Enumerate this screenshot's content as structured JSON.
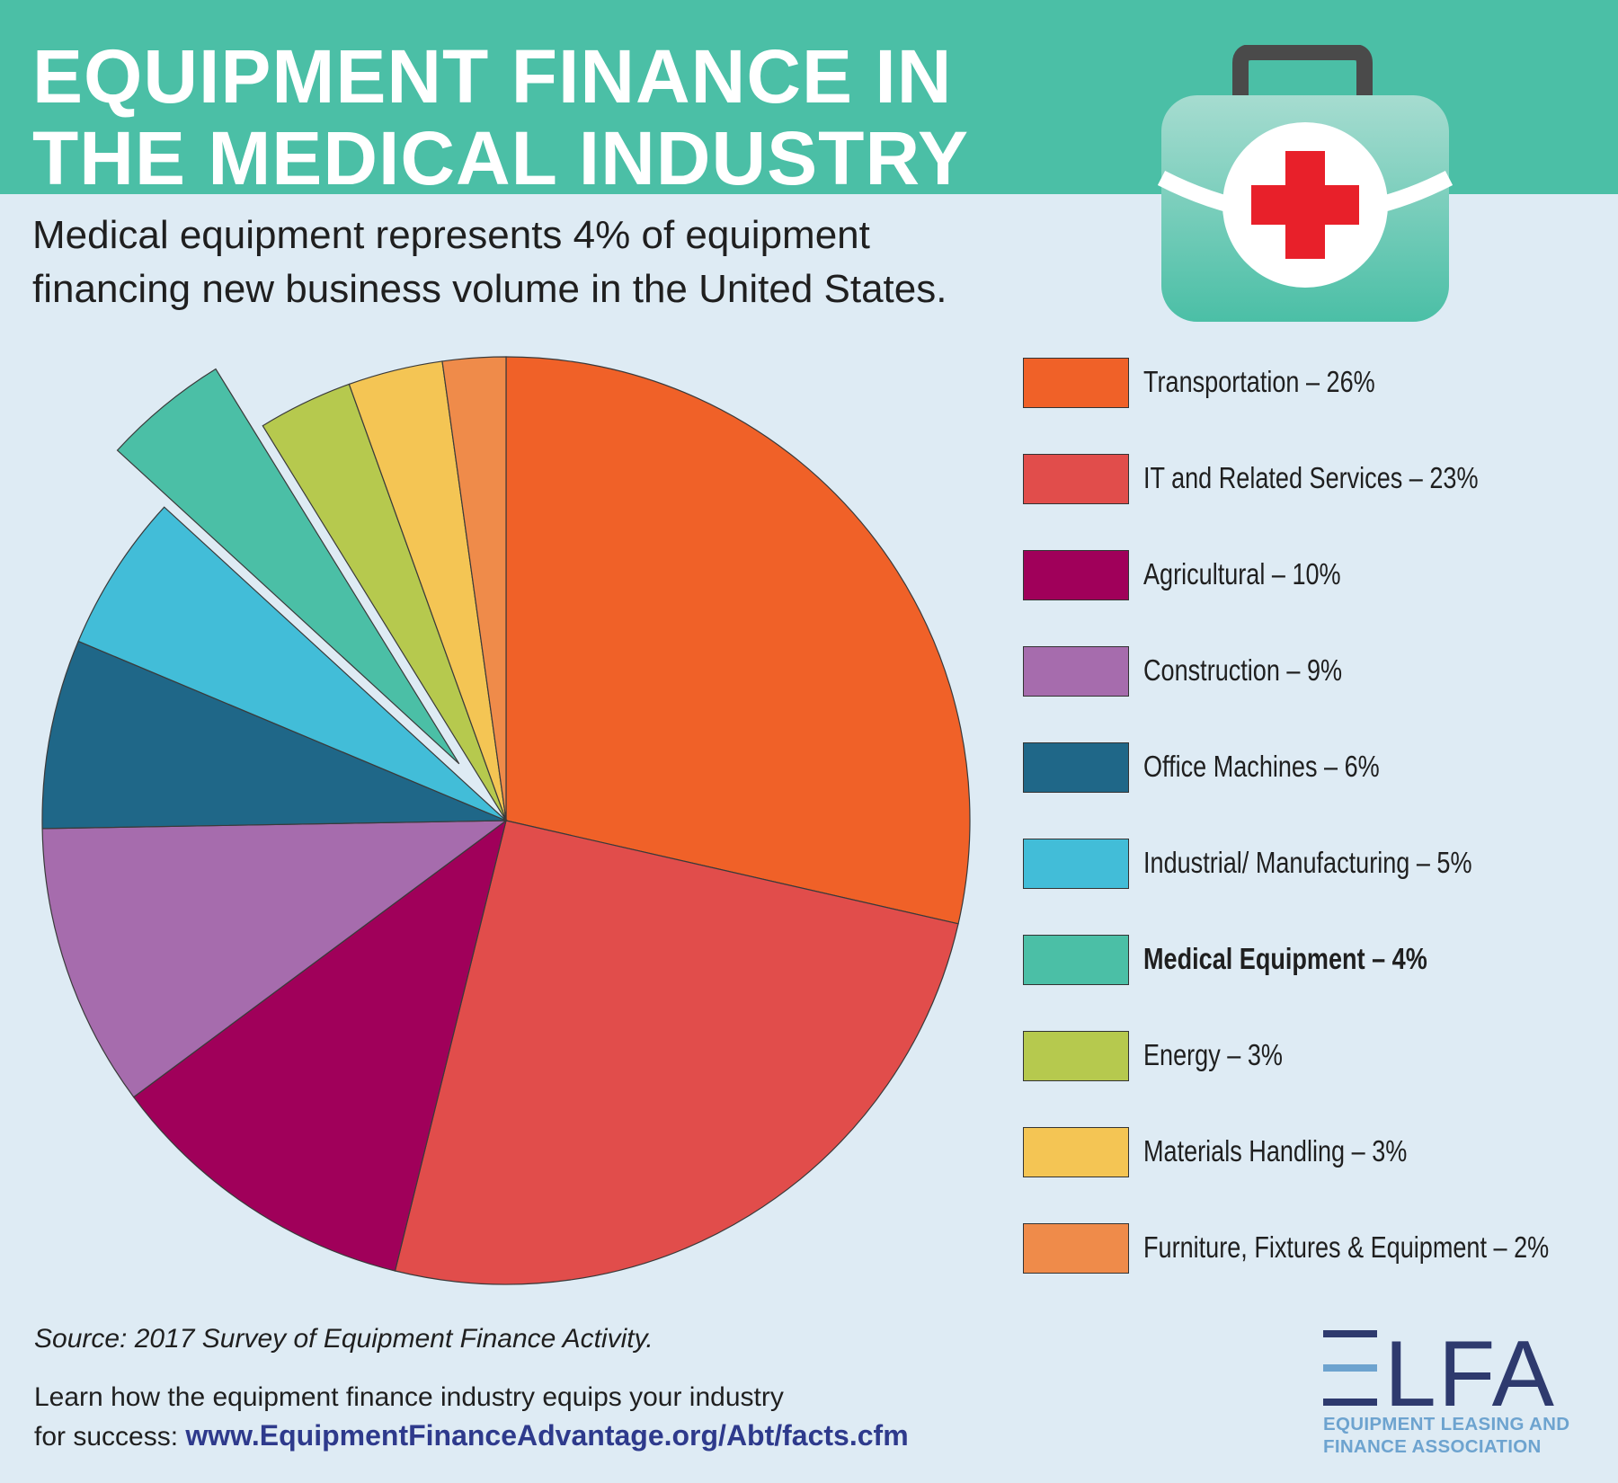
{
  "header": {
    "title_line1": "EQUIPMENT FINANCE IN",
    "title_line2": "THE MEDICAL INDUSTRY",
    "subtitle_line1": "Medical equipment represents 4% of equipment",
    "subtitle_line2": "financing new business volume in the United States."
  },
  "icons": {
    "medical_kit": "medical-kit-icon",
    "red_cross": "red-cross-icon"
  },
  "chart_data": {
    "type": "pie",
    "exploded": "Medical Equipment",
    "slices": [
      {
        "label": "Transportation",
        "value": 26,
        "color": "#f06128",
        "legend": "Transportation – 26%"
      },
      {
        "label": "IT and Related Services",
        "value": 23,
        "color": "#e14d4b",
        "legend": "IT and Related Services – 23%"
      },
      {
        "label": "Agricultural",
        "value": 10,
        "color": "#a0005a",
        "legend": "Agricultural – 10%"
      },
      {
        "label": "Construction",
        "value": 9,
        "color": "#a66cad",
        "legend": "Construction – 9%"
      },
      {
        "label": "Office Machines",
        "value": 6,
        "color": "#1f6788",
        "legend": "Office Machines – 6%"
      },
      {
        "label": "Industrial/ Manufacturing",
        "value": 5,
        "color": "#42bdd8",
        "legend": "Industrial/ Manufacturing – 5%"
      },
      {
        "label": "Medical Equipment",
        "value": 4,
        "color": "#4bbfa6",
        "legend": "Medical Equipment – 4%",
        "bold": true
      },
      {
        "label": "Energy",
        "value": 3,
        "color": "#b6c94e",
        "legend": "Energy – 3%"
      },
      {
        "label": "Materials Handling",
        "value": 3,
        "color": "#f4c554",
        "legend": "Materials Handling – 3%"
      },
      {
        "label": "Furniture, Fixtures & Equipment",
        "value": 2,
        "color": "#ef8b4a",
        "legend": "Furniture, Fixtures & Equipment – 2%"
      }
    ]
  },
  "footer": {
    "source": "Source: 2017 Survey of Equipment Finance Activity.",
    "learn_line1": "Learn how the equipment finance industry equips your industry",
    "learn_prefix": "for success: ",
    "url": "www.EquipmentFinanceAdvantage.org/Abt/facts.cfm"
  },
  "logo": {
    "name": "ELFA",
    "letters": "LFA",
    "line1": "EQUIPMENT LEASING AND",
    "line2": "FINANCE ASSOCIATION",
    "color_dark": "#2e3a6e",
    "color_light": "#6da3cf"
  }
}
